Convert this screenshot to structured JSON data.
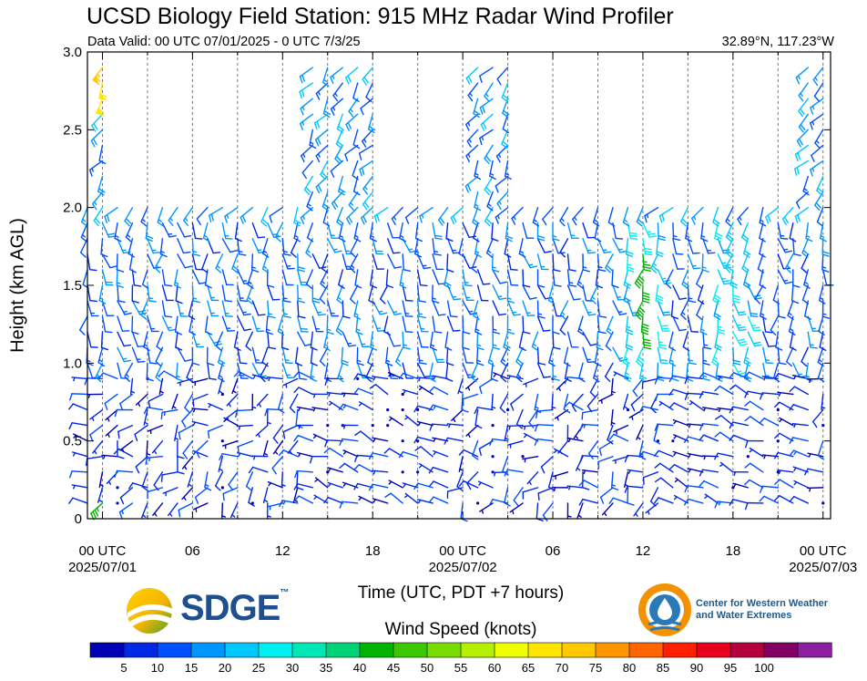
{
  "header": {
    "title": "UCSD Biology Field Station: 915 MHz Radar Wind Profiler",
    "valid": "Data Valid: 00 UTC 07/01/2025 - 0 UTC 7/3/25",
    "coords": "32.89°N, 117.23°W"
  },
  "chart_data": {
    "type": "wind-barb time-height",
    "xlabel": "Time (UTC, PDT +7 hours)",
    "ylabel": "Height (km AGL)",
    "xlim_hours": [
      -1,
      48.5
    ],
    "ylim": [
      0,
      3.0
    ],
    "y_ticks": [
      "0",
      "0.5",
      "1.0",
      "1.5",
      "2.0",
      "2.5",
      "3.0"
    ],
    "y_tick_values": [
      0,
      0.5,
      1.0,
      1.5,
      2.0,
      2.5,
      3.0
    ],
    "x_ticks": [
      {
        "hour": 0,
        "line1": "00 UTC",
        "line2": "2025/07/01"
      },
      {
        "hour": 6,
        "line1": "06",
        "line2": ""
      },
      {
        "hour": 12,
        "line1": "12",
        "line2": ""
      },
      {
        "hour": 18,
        "line1": "18",
        "line2": ""
      },
      {
        "hour": 24,
        "line1": "00 UTC",
        "line2": "2025/07/02"
      },
      {
        "hour": 30,
        "line1": "06",
        "line2": ""
      },
      {
        "hour": 36,
        "line1": "12",
        "line2": ""
      },
      {
        "hour": 42,
        "line1": "18",
        "line2": ""
      },
      {
        "hour": 48,
        "line1": "00 UTC",
        "line2": "2025/07/03"
      }
    ],
    "gridlines_hours": [
      0,
      3,
      6,
      9,
      12,
      15,
      18,
      21,
      24,
      27,
      30,
      33,
      36,
      39,
      42,
      45,
      48
    ],
    "barb_times_hours": [
      -1,
      0,
      1,
      2,
      3,
      4,
      5,
      6,
      7,
      8,
      9,
      10,
      11,
      12,
      13,
      14,
      15,
      16,
      17,
      18,
      19,
      20,
      21,
      22,
      23,
      24,
      25,
      26,
      27,
      28,
      29,
      30,
      31,
      32,
      33,
      34,
      35,
      36,
      37,
      38,
      39,
      40,
      41,
      42,
      43,
      44,
      45,
      46,
      47,
      48
    ],
    "barb_heights_km": [
      0.1,
      0.2,
      0.3,
      0.4,
      0.5,
      0.6,
      0.7,
      0.8,
      0.9,
      1.0,
      1.1,
      1.2,
      1.3,
      1.4,
      1.5,
      1.6,
      1.7,
      1.8,
      1.9,
      2.0
    ],
    "barb_heights_upper_km": [
      2.1,
      2.2,
      2.3,
      2.4,
      2.5,
      2.6,
      2.7,
      2.8,
      2.9
    ],
    "colorbar": {
      "label": "Wind Speed (knots)",
      "ticks": [
        "5",
        "10",
        "15",
        "20",
        "25",
        "30",
        "35",
        "40",
        "45",
        "50",
        "55",
        "60",
        "65",
        "70",
        "75",
        "80",
        "85",
        "90",
        "95",
        "100"
      ],
      "colors": [
        "#0000b4",
        "#0028e6",
        "#0050ff",
        "#0096ff",
        "#00c8ff",
        "#00f0f0",
        "#00e6b4",
        "#00d278",
        "#00b400",
        "#3cc800",
        "#78dc00",
        "#b4f000",
        "#f0ff00",
        "#ffe600",
        "#ffc800",
        "#ff9600",
        "#ff6400",
        "#ff1e00",
        "#e6001e",
        "#b4003c",
        "#820064",
        "#8c1ea0"
      ]
    }
  },
  "logos": {
    "sdge": "SDGE",
    "sdge_tm": "™",
    "cw3e_line1": "Center for Western Weather",
    "cw3e_line2": "and Water Extremes"
  }
}
